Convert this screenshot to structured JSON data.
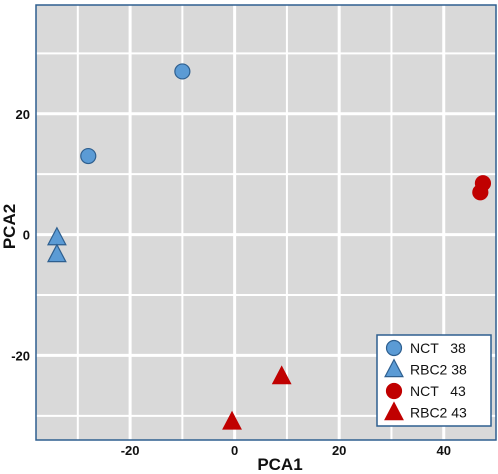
{
  "chart_data": {
    "type": "scatter",
    "title": "",
    "xlabel": "PCA1",
    "ylabel": "PCA2",
    "xlim": [
      -38,
      50
    ],
    "ylim": [
      -34,
      38
    ],
    "xticks": [
      -20,
      0,
      20,
      40
    ],
    "yticks": [
      -20,
      0,
      20
    ],
    "grid": true,
    "legend_position": "bottom-right",
    "background_color": "#d9d9d9",
    "series": [
      {
        "name": "NCT   38",
        "marker": "circle",
        "color": "#5b9bd5",
        "edge": "#2e5f8f",
        "points": [
          {
            "x": -10,
            "y": 27
          },
          {
            "x": -28,
            "y": 13
          }
        ]
      },
      {
        "name": "RBC2 38",
        "marker": "triangle",
        "color": "#5b9bd5",
        "edge": "#2e5f8f",
        "points": [
          {
            "x": -34,
            "y": -0.5
          },
          {
            "x": -34,
            "y": -3.3
          }
        ]
      },
      {
        "name": "NCT   43",
        "marker": "circle",
        "color": "#c00000",
        "edge": "#c00000",
        "points": [
          {
            "x": 47.5,
            "y": 8.5
          },
          {
            "x": 47,
            "y": 7
          }
        ]
      },
      {
        "name": "RBC2 43",
        "marker": "triangle",
        "color": "#c00000",
        "edge": "#c00000",
        "points": [
          {
            "x": 9,
            "y": -23.5
          },
          {
            "x": -0.5,
            "y": -31
          }
        ]
      }
    ]
  }
}
